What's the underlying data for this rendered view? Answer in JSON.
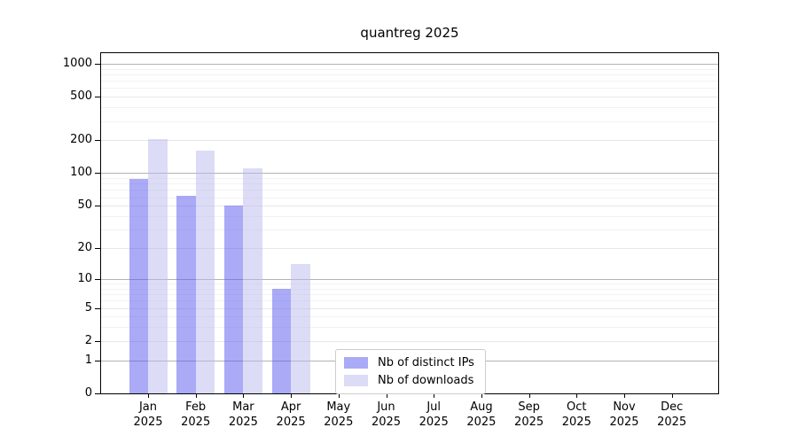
{
  "title": "quantreg 2025",
  "chart_data": {
    "type": "bar",
    "title": "quantreg 2025",
    "yscale": "log1p",
    "ylim": [
      0,
      1350
    ],
    "grid": "horizontal",
    "legend_position": "lower center",
    "months": [
      "Jan",
      "Feb",
      "Mar",
      "Apr",
      "May",
      "Jun",
      "Jul",
      "Aug",
      "Sep",
      "Oct",
      "Nov",
      "Dec"
    ],
    "year": "2025",
    "yticks": [
      0,
      1,
      2,
      5,
      10,
      20,
      50,
      100,
      200,
      500,
      1000
    ],
    "series": [
      {
        "name": "Nb of distinct IPs",
        "color": "rgba(85,85,238,0.5)",
        "values": [
          88,
          62,
          50,
          8,
          null,
          null,
          null,
          null,
          null,
          null,
          null,
          null
        ]
      },
      {
        "name": "Nb of downloads",
        "color": "rgba(185,185,240,0.5)",
        "values": [
          205,
          162,
          110,
          14,
          null,
          null,
          null,
          null,
          null,
          null,
          null,
          null
        ]
      }
    ]
  }
}
